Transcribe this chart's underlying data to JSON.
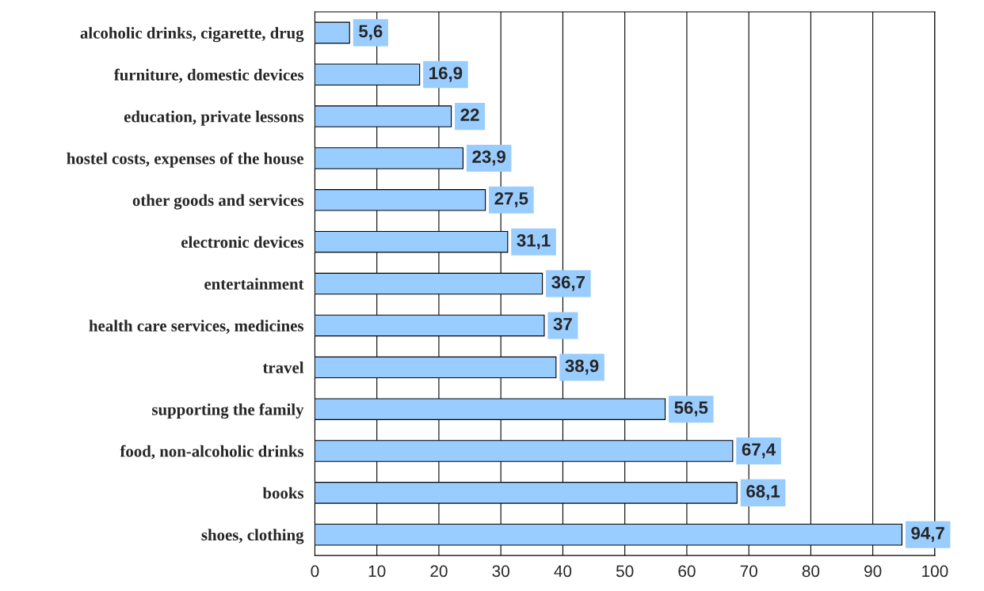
{
  "chart_data": {
    "type": "bar",
    "orientation": "horizontal",
    "categories": [
      "alcoholic drinks, cigarette, drug",
      "furniture, domestic devices",
      "education, private lessons",
      "hostel costs, expenses of the house",
      "other goods and services",
      "electronic devices",
      "entertainment",
      "health care services, medicines",
      "travel",
      "supporting the family",
      "food, non-alcoholic drinks",
      "books",
      "shoes, clothing"
    ],
    "values": [
      5.6,
      16.9,
      22,
      23.9,
      27.5,
      31.1,
      36.7,
      37,
      38.9,
      56.5,
      67.4,
      68.1,
      94.7
    ],
    "value_labels": [
      "5,6",
      "16,9",
      "22",
      "23,9",
      "27,5",
      "31,1",
      "36,7",
      "37",
      "38,9",
      "56,5",
      "67,4",
      "68,1",
      "94,7"
    ],
    "color": "#99ccff",
    "xlim": [
      0,
      100
    ],
    "xticks": [
      0,
      10,
      20,
      30,
      40,
      50,
      60,
      70,
      80,
      90,
      100
    ],
    "grid": "x"
  }
}
